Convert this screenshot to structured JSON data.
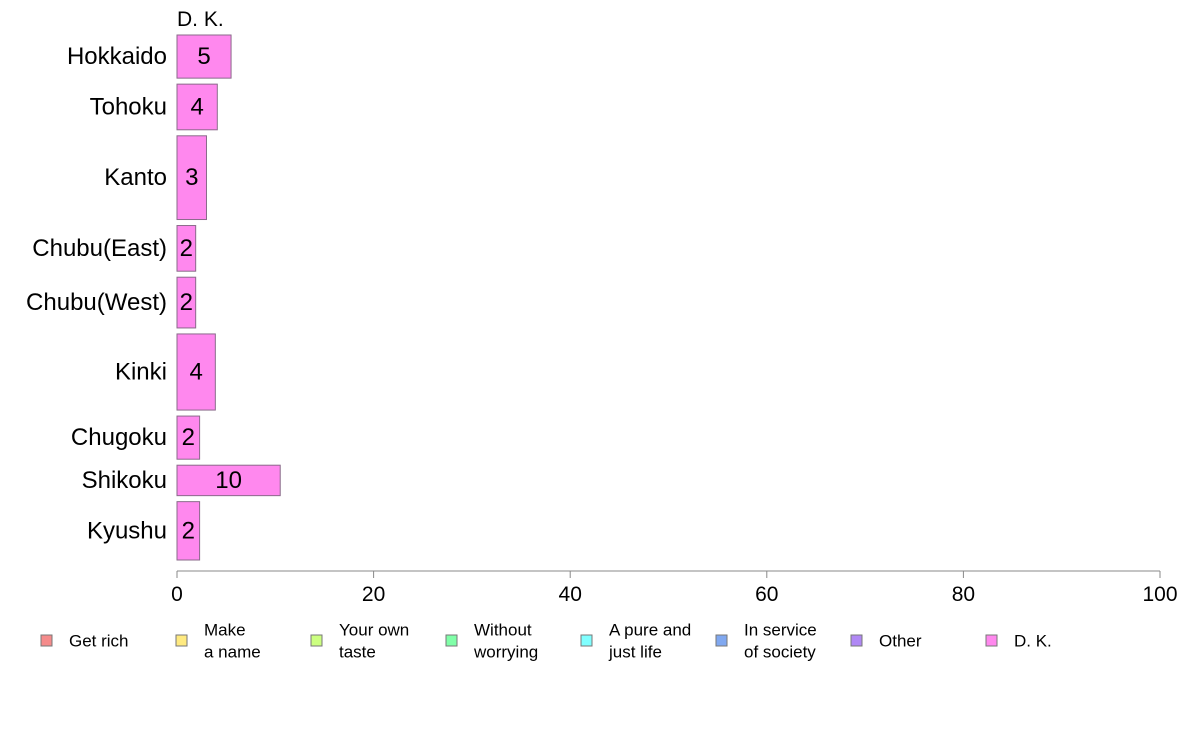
{
  "chart_data": {
    "type": "bar",
    "orientation": "horizontal",
    "stacked": true,
    "series_label_top": "D. K.",
    "categories": [
      "Hokkaido",
      "Tohoku",
      "Kanto",
      "Chubu(East)",
      "Chubu(West)",
      "Kinki",
      "Chugoku",
      "Shikoku",
      "Kyushu"
    ],
    "category_weights": [
      0.85,
      0.9,
      1.65,
      0.9,
      1.0,
      1.5,
      0.85,
      0.6,
      1.15
    ],
    "series": [
      {
        "name": "D. K.",
        "color": "#ff88ee",
        "values": [
          5.5,
          4.1,
          3.0,
          1.9,
          1.9,
          3.9,
          2.3,
          10.5,
          2.3
        ],
        "labels": [
          "5",
          "4",
          "3",
          "2",
          "2",
          "4",
          "2",
          "10",
          "2"
        ]
      }
    ],
    "xlim": [
      0,
      100
    ],
    "xticks": [
      "0",
      "20",
      "40",
      "60",
      "80",
      "100"
    ],
    "grid": false,
    "legend_position": "bottom",
    "legend": [
      {
        "lines": [
          "Get rich"
        ],
        "color": "#f58b8b"
      },
      {
        "lines": [
          "Make",
          "a name"
        ],
        "color": "#ffea80"
      },
      {
        "lines": [
          "Your own",
          "taste"
        ],
        "color": "#ccff80"
      },
      {
        "lines": [
          "Without",
          "worrying"
        ],
        "color": "#80ffa8"
      },
      {
        "lines": [
          "A pure and",
          "just life"
        ],
        "color": "#80ffff"
      },
      {
        "lines": [
          "In service",
          "of society"
        ],
        "color": "#80a8f0"
      },
      {
        "lines": [
          "Other"
        ],
        "color": "#b088f5"
      },
      {
        "lines": [
          "D. K."
        ],
        "color": "#ff88ee"
      }
    ]
  }
}
